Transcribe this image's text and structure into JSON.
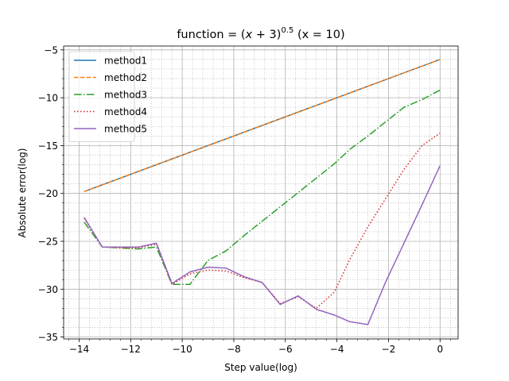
{
  "chart_data": {
    "type": "line",
    "title": {
      "prefix": "function = (",
      "var": "x",
      "op": " + 3)",
      "exponent": "0.5",
      "suffix": " (x = 10)"
    },
    "xlabel": "Step value(log)",
    "ylabel": "Absolute error(log)",
    "xlim": [
      -14.6,
      0.7
    ],
    "ylim": [
      -35.2,
      -4.6
    ],
    "xticks": [
      -14,
      -12,
      -10,
      -8,
      -6,
      -4,
      -2,
      0
    ],
    "yticks": [
      -35,
      -30,
      -25,
      -20,
      -15,
      -10,
      -5
    ],
    "xtick_labels": [
      "−14",
      "−12",
      "−10",
      "−8",
      "−6",
      "−4",
      "−2",
      "0"
    ],
    "ytick_labels": [
      "−35",
      "−30",
      "−25",
      "−20",
      "−15",
      "−10",
      "−5"
    ],
    "grid": "major and minor",
    "legend_position": "top-left",
    "series": [
      {
        "name": "method1",
        "color": "#1f77b4",
        "style": "solid",
        "x": [
          -13.8,
          0
        ],
        "y": [
          -19.8,
          -6.0
        ]
      },
      {
        "name": "method2",
        "color": "#ff7f0e",
        "style": "dashed",
        "x": [
          -13.8,
          0
        ],
        "y": [
          -19.8,
          -6.0
        ]
      },
      {
        "name": "method3",
        "color": "#2ca02c",
        "style": "dashdot",
        "x": [
          -13.8,
          -13.1,
          -12.4,
          -11.7,
          -11.0,
          -10.4,
          -9.7,
          -9.0,
          -8.3,
          -7.6,
          -6.9,
          -6.2,
          -5.5,
          -4.8,
          -4.1,
          -3.5,
          -2.8,
          -2.1,
          -1.4,
          -0.7,
          0
        ],
        "y": [
          -23.0,
          -25.6,
          -25.7,
          -25.8,
          -25.6,
          -29.5,
          -29.5,
          -27.0,
          -26.0,
          -24.4,
          -22.9,
          -21.4,
          -19.9,
          -18.4,
          -16.9,
          -15.4,
          -14.0,
          -12.5,
          -11.0,
          -10.2,
          -9.2
        ]
      },
      {
        "name": "method4",
        "color": "#d62728",
        "style": "dotted",
        "x": [
          -13.8,
          -13.1,
          -12.4,
          -11.7,
          -11.0,
          -10.4,
          -9.7,
          -9.0,
          -8.3,
          -7.6,
          -6.9,
          -6.2,
          -5.5,
          -4.8,
          -4.1,
          -3.5,
          -2.8,
          -2.1,
          -1.4,
          -0.7,
          0
        ],
        "y": [
          -22.6,
          -25.6,
          -25.7,
          -25.7,
          -25.3,
          -29.5,
          -28.4,
          -28.0,
          -28.1,
          -28.8,
          -29.3,
          -31.5,
          -30.8,
          -32.0,
          -30.3,
          -26.9,
          -23.5,
          -20.5,
          -17.5,
          -15.0,
          -13.7
        ]
      },
      {
        "name": "method5",
        "color": "#9467bd",
        "style": "solid",
        "x": [
          -13.8,
          -13.1,
          -12.4,
          -11.7,
          -11.0,
          -10.4,
          -9.7,
          -9.0,
          -8.3,
          -7.6,
          -6.9,
          -6.2,
          -5.5,
          -4.8,
          -4.1,
          -3.5,
          -2.8,
          -2.1,
          -1.4,
          -0.7,
          0
        ],
        "y": [
          -22.5,
          -25.6,
          -25.6,
          -25.6,
          -25.2,
          -29.4,
          -28.2,
          -27.7,
          -27.8,
          -28.7,
          -29.3,
          -31.6,
          -30.7,
          -32.1,
          -32.7,
          -33.4,
          -33.7,
          -29.2,
          -25.2,
          -21.2,
          -17.1
        ]
      }
    ]
  }
}
